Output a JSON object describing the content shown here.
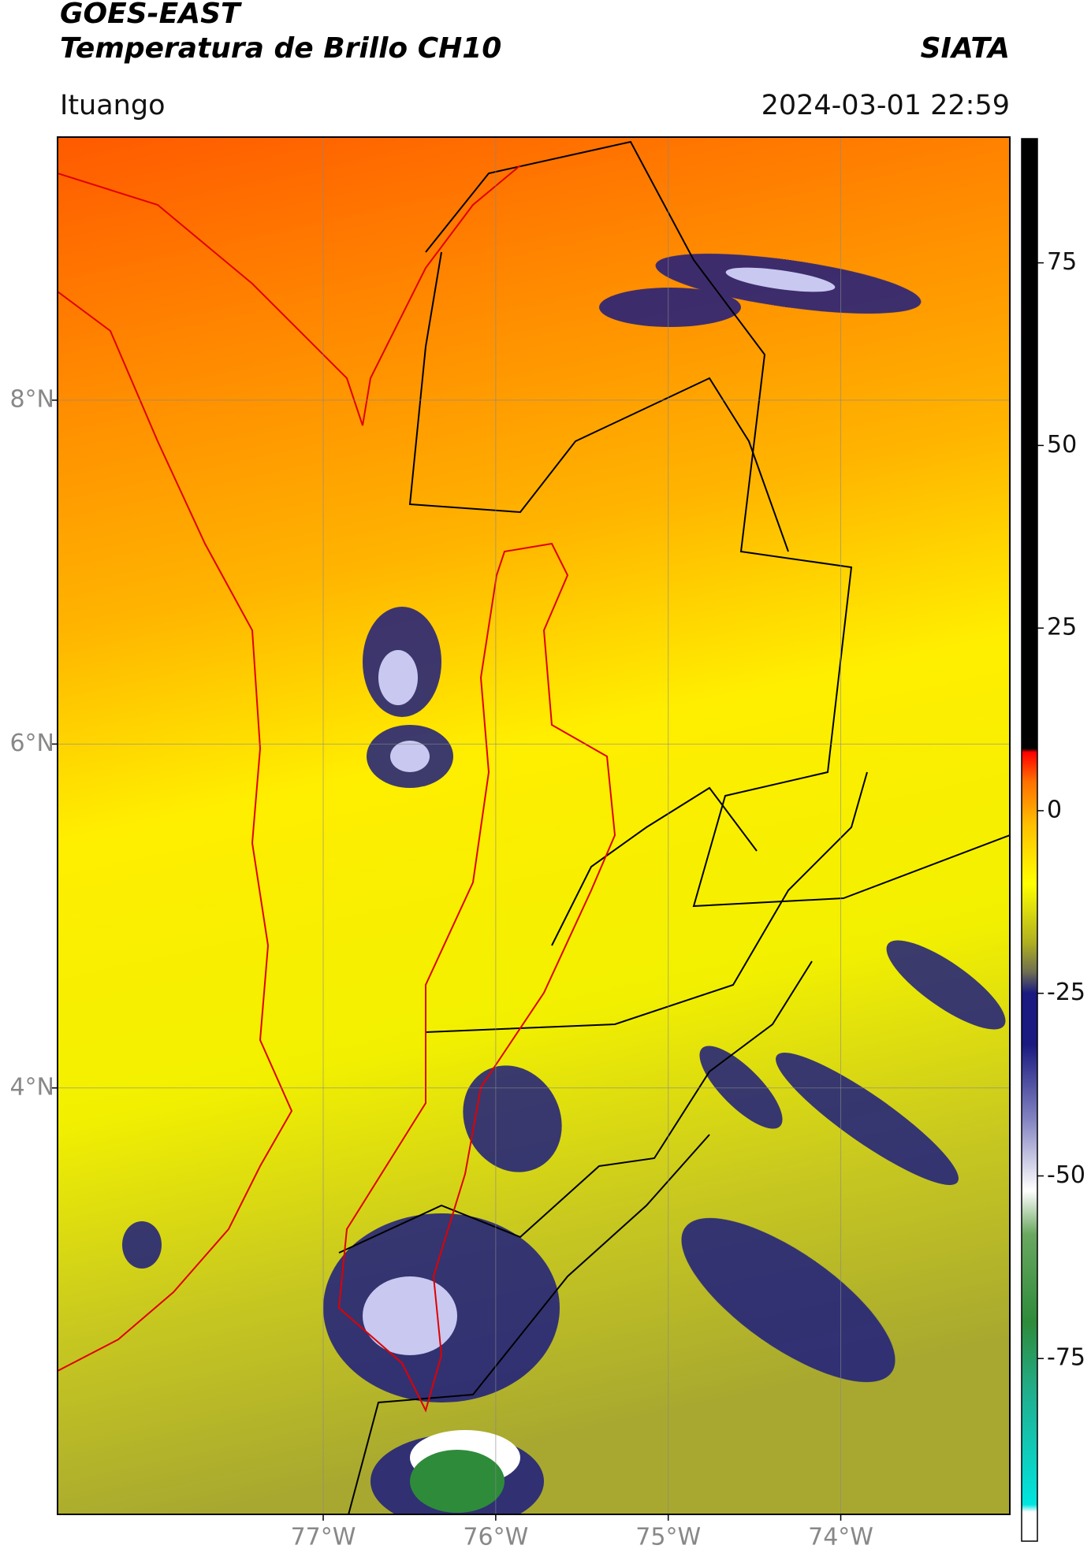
{
  "header": {
    "title": "GOES-EAST",
    "subtitle": "Temperatura de Brillo CH10",
    "brand": "SIATA",
    "location": "Ituango",
    "datetime": "2024-03-01 22:59"
  },
  "map": {
    "xlim": [
      -78.54,
      -73.02
    ],
    "ylim": [
      1.52,
      9.53
    ],
    "xticks": [
      {
        "value": -77,
        "label": "77°W"
      },
      {
        "value": -76,
        "label": "76°W"
      },
      {
        "value": -75,
        "label": "75°W"
      },
      {
        "value": -74,
        "label": "74°W"
      }
    ],
    "yticks": [
      {
        "value": 8,
        "label": "8°N"
      },
      {
        "value": 6,
        "label": "6°N"
      },
      {
        "value": 4,
        "label": "4°N"
      }
    ],
    "grid": true
  },
  "colorbar": {
    "clim": [
      -100,
      92
    ],
    "ticks": [
      75,
      50,
      25,
      0,
      -25,
      -50,
      -75
    ],
    "colorscale": [
      [
        -100,
        "#ffffff"
      ],
      [
        -96,
        "#ffffff"
      ],
      [
        -95,
        "#00e5e0"
      ],
      [
        -80,
        "#20b090"
      ],
      [
        -70,
        "#2e8b3a"
      ],
      [
        -58,
        "#6aa860"
      ],
      [
        -52,
        "#ffffff"
      ],
      [
        -42,
        "#8080c0"
      ],
      [
        -32,
        "#1a1a80"
      ],
      [
        -25,
        "#1a1a80"
      ],
      [
        -22,
        "#707050"
      ],
      [
        -18,
        "#b0b020"
      ],
      [
        -10,
        "#ffff00"
      ],
      [
        -2,
        "#ffc000"
      ],
      [
        4,
        "#ff7000"
      ],
      [
        8,
        "#ff0000"
      ],
      [
        8.5,
        "#000000"
      ],
      [
        92,
        "#000000"
      ]
    ]
  }
}
